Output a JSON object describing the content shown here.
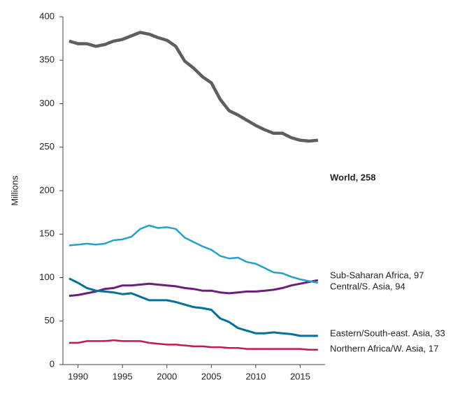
{
  "chart_data": {
    "type": "line",
    "y_label": "Millions",
    "x": [
      1989,
      1990,
      1991,
      1992,
      1993,
      1994,
      1995,
      1996,
      1997,
      1998,
      1999,
      2000,
      2001,
      2002,
      2003,
      2004,
      2005,
      2006,
      2007,
      2008,
      2009,
      2010,
      2011,
      2012,
      2013,
      2014,
      2015,
      2016,
      2017
    ],
    "series": [
      {
        "name": "World, 258",
        "color": "#5e5e5e",
        "values": [
          372,
          369,
          369,
          366,
          368,
          372,
          374,
          378,
          382,
          380,
          376,
          373,
          366,
          349,
          341,
          331,
          324,
          305,
          292,
          287,
          281,
          275,
          270,
          266,
          266,
          261,
          258,
          257,
          258
        ]
      },
      {
        "name": "Sub-Saharan Africa, 97",
        "color": "#6b1f7b",
        "values": [
          79,
          80,
          82,
          84,
          87,
          88,
          91,
          91,
          92,
          93,
          92,
          91,
          90,
          88,
          87,
          85,
          85,
          83,
          82,
          83,
          84,
          84,
          85,
          86,
          88,
          91,
          93,
          95,
          97
        ]
      },
      {
        "name": "Central/S. Asia, 94",
        "color": "#22a2cc",
        "values": [
          137,
          138,
          139,
          138,
          139,
          143,
          144,
          147,
          156,
          160,
          157,
          158,
          156,
          146,
          141,
          136,
          132,
          125,
          122,
          123,
          118,
          116,
          111,
          106,
          105,
          101,
          98,
          96,
          94
        ]
      },
      {
        "name": "Eastern/South-east. Asia, 33",
        "color": "#00719a",
        "values": [
          99,
          94,
          88,
          85,
          84,
          83,
          81,
          82,
          78,
          74,
          74,
          74,
          72,
          69,
          66,
          65,
          63,
          53,
          49,
          42,
          39,
          36,
          36,
          37,
          36,
          35,
          33,
          33,
          33
        ]
      },
      {
        "name": "Northern Africa/W. Asia, 17",
        "color": "#c2185b",
        "values": [
          25,
          25,
          27,
          27,
          27,
          28,
          27,
          27,
          27,
          25,
          24,
          23,
          23,
          22,
          21,
          21,
          20,
          20,
          19,
          19,
          18,
          18,
          18,
          18,
          18,
          18,
          18,
          17,
          17
        ]
      }
    ],
    "xlim": [
      1988.3,
      2017.8
    ],
    "xticks": [
      1990,
      1995,
      2000,
      2005,
      2010,
      2015
    ],
    "ylim": [
      0,
      400
    ],
    "yticks": [
      0,
      50,
      100,
      150,
      200,
      250,
      300,
      350,
      400
    ]
  }
}
